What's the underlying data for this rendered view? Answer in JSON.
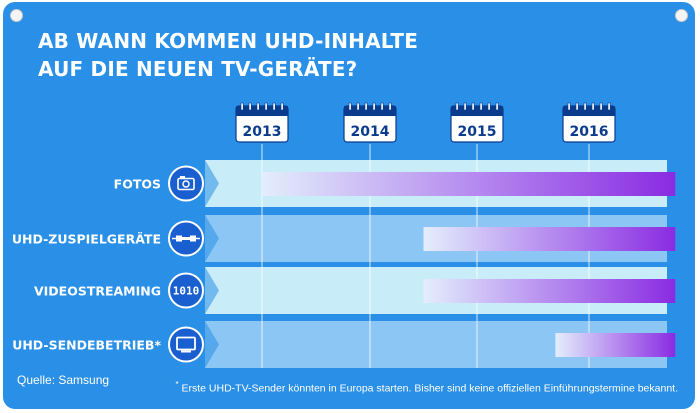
{
  "title_lines": [
    "AB WANN KOMMEN UHD-INHALTE",
    "AUF DIE NEUEN TV-GERÄTE?"
  ],
  "source": "Quelle: Samsung",
  "footnote": {
    "marker": "*",
    "text": "Erste UHD-TV-Sender könnten in Europa starten. Bisher sind keine offiziellen Einführungstermine bekannt."
  },
  "colors": {
    "background": "#2a8fe6",
    "lane_light": "#c9ecf9",
    "lane_mid": "#8cc6f5",
    "bar_start": "#e3eefc",
    "bar_end": "#8a2be2",
    "icon_circle": "#1a5fd0"
  },
  "chart_data": {
    "type": "timeline",
    "x_ticks": [
      "2013",
      "2014",
      "2015",
      "2016"
    ],
    "xlim": [
      2012.5,
      2016.75
    ],
    "rows": [
      {
        "label": "FOTOS",
        "icon": "camera-icon",
        "start": 2013.0,
        "end": 2016.75
      },
      {
        "label": "UHD-ZUSPIELGERÄTE",
        "icon": "cable-connector-icon",
        "start": 2014.5,
        "end": 2016.75
      },
      {
        "label": "VIDEOSTREAMING",
        "icon": "binary-stream-icon",
        "start": 2014.5,
        "end": 2016.75
      },
      {
        "label": "UHD-SENDEBETRIEB*",
        "icon": "tv-icon",
        "start": 2015.7,
        "end": 2016.75
      }
    ]
  }
}
